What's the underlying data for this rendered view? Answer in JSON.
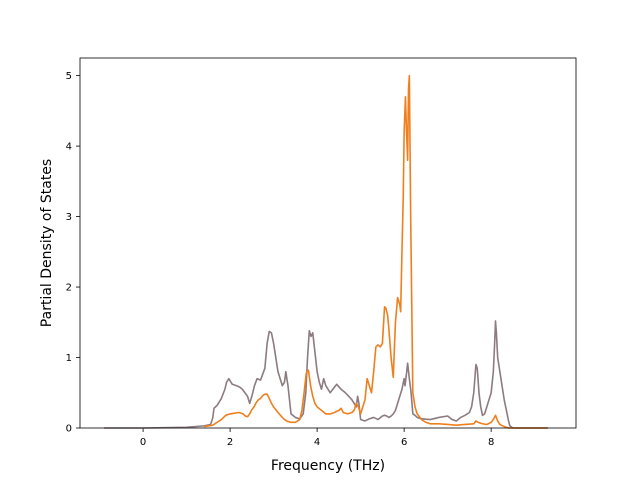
{
  "chart_data": {
    "type": "line",
    "title": "",
    "xlabel": "Frequency (THz)",
    "ylabel": "Partial Density of States",
    "xlim": [
      -1.45,
      9.95
    ],
    "ylim": [
      0,
      5.25
    ],
    "xticks": [
      0,
      2,
      4,
      6,
      8
    ],
    "yticks": [
      0,
      1,
      2,
      3,
      4,
      5
    ],
    "grid": false,
    "legend": "none",
    "series": [
      {
        "color": "#8c7b7f",
        "x": [
          -0.9,
          0.0,
          0.5,
          1.0,
          1.4,
          1.55,
          1.6,
          1.63,
          1.7,
          1.8,
          1.88,
          1.92,
          1.97,
          2.05,
          2.15,
          2.22,
          2.28,
          2.34,
          2.4,
          2.45,
          2.5,
          2.56,
          2.62,
          2.7,
          2.8,
          2.85,
          2.9,
          2.95,
          3.0,
          3.1,
          3.2,
          3.25,
          3.28,
          3.33,
          3.4,
          3.5,
          3.6,
          3.68,
          3.74,
          3.78,
          3.82,
          3.86,
          3.9,
          4.0,
          4.05,
          4.1,
          4.15,
          4.2,
          4.3,
          4.45,
          4.55,
          4.65,
          4.8,
          4.85,
          4.9,
          4.93,
          4.96,
          5.0,
          5.1,
          5.2,
          5.3,
          5.4,
          5.5,
          5.55,
          5.6,
          5.65,
          5.7,
          5.75,
          5.8,
          5.85,
          5.9,
          5.95,
          6.0,
          6.02,
          6.05,
          6.08,
          6.12,
          6.16,
          6.2,
          6.25,
          6.3,
          6.4,
          6.6,
          6.8,
          7.0,
          7.1,
          7.2,
          7.3,
          7.4,
          7.5,
          7.55,
          7.6,
          7.65,
          7.68,
          7.72,
          7.76,
          7.8,
          7.85,
          7.9,
          7.95,
          8.0,
          8.05,
          8.08,
          8.1,
          8.12,
          8.15,
          8.2,
          8.25,
          8.3,
          8.35,
          8.4,
          8.43,
          8.5,
          8.6,
          8.8,
          9.0,
          9.3
        ],
        "y": [
          0.0,
          0.0,
          0.005,
          0.01,
          0.03,
          0.05,
          0.14,
          0.28,
          0.32,
          0.42,
          0.55,
          0.65,
          0.7,
          0.62,
          0.6,
          0.58,
          0.55,
          0.5,
          0.45,
          0.35,
          0.45,
          0.6,
          0.7,
          0.68,
          0.85,
          1.2,
          1.37,
          1.35,
          1.2,
          0.8,
          0.6,
          0.65,
          0.8,
          0.6,
          0.2,
          0.15,
          0.13,
          0.2,
          0.5,
          1.0,
          1.38,
          1.3,
          1.35,
          0.8,
          0.65,
          0.55,
          0.7,
          0.6,
          0.5,
          0.62,
          0.55,
          0.5,
          0.4,
          0.35,
          0.3,
          0.45,
          0.35,
          0.12,
          0.1,
          0.13,
          0.15,
          0.12,
          0.17,
          0.18,
          0.17,
          0.15,
          0.17,
          0.2,
          0.25,
          0.35,
          0.45,
          0.55,
          0.7,
          0.6,
          0.75,
          0.92,
          0.7,
          0.5,
          0.2,
          0.18,
          0.15,
          0.13,
          0.12,
          0.15,
          0.17,
          0.12,
          0.1,
          0.15,
          0.18,
          0.22,
          0.3,
          0.5,
          0.9,
          0.85,
          0.5,
          0.3,
          0.18,
          0.2,
          0.3,
          0.4,
          0.5,
          0.8,
          1.2,
          1.52,
          1.35,
          1.0,
          0.8,
          0.6,
          0.4,
          0.25,
          0.1,
          0.03,
          0.0,
          0.0,
          0.0,
          0.0,
          0.0
        ]
      },
      {
        "color": "#ef7f1e",
        "x": [
          1.4,
          1.6,
          1.7,
          1.8,
          1.9,
          2.0,
          2.1,
          2.2,
          2.3,
          2.35,
          2.4,
          2.45,
          2.5,
          2.55,
          2.6,
          2.65,
          2.7,
          2.75,
          2.8,
          2.85,
          2.9,
          2.95,
          3.0,
          3.1,
          3.2,
          3.25,
          3.3,
          3.4,
          3.5,
          3.6,
          3.65,
          3.7,
          3.75,
          3.8,
          3.85,
          3.9,
          3.95,
          4.0,
          4.1,
          4.2,
          4.3,
          4.4,
          4.5,
          4.55,
          4.6,
          4.7,
          4.8,
          4.85,
          4.9,
          4.95,
          5.0,
          5.1,
          5.15,
          5.2,
          5.25,
          5.3,
          5.35,
          5.4,
          5.45,
          5.5,
          5.55,
          5.58,
          5.62,
          5.65,
          5.7,
          5.75,
          5.8,
          5.85,
          5.9,
          5.92,
          5.95,
          5.98,
          6.0,
          6.03,
          6.05,
          6.08,
          6.1,
          6.12,
          6.15,
          6.18,
          6.2,
          6.25,
          6.3,
          6.4,
          6.5,
          6.6,
          6.8,
          7.0,
          7.2,
          7.4,
          7.6,
          7.65,
          7.7,
          7.8,
          7.9,
          8.0,
          8.05,
          8.1,
          8.15,
          8.2,
          8.3,
          8.4,
          8.5,
          9.3
        ],
        "y": [
          0.02,
          0.04,
          0.08,
          0.12,
          0.18,
          0.2,
          0.21,
          0.22,
          0.2,
          0.17,
          0.16,
          0.2,
          0.26,
          0.3,
          0.36,
          0.4,
          0.42,
          0.46,
          0.48,
          0.48,
          0.42,
          0.35,
          0.3,
          0.22,
          0.15,
          0.12,
          0.1,
          0.08,
          0.08,
          0.12,
          0.25,
          0.5,
          0.78,
          0.82,
          0.6,
          0.45,
          0.35,
          0.3,
          0.25,
          0.2,
          0.2,
          0.22,
          0.25,
          0.28,
          0.22,
          0.2,
          0.22,
          0.25,
          0.35,
          0.3,
          0.2,
          0.4,
          0.7,
          0.6,
          0.5,
          0.8,
          1.15,
          1.18,
          1.15,
          1.2,
          1.72,
          1.7,
          1.6,
          1.4,
          1.0,
          0.72,
          1.5,
          1.85,
          1.75,
          1.65,
          2.5,
          3.3,
          4.2,
          4.7,
          4.3,
          3.8,
          4.8,
          5.0,
          3.0,
          1.5,
          0.5,
          0.3,
          0.2,
          0.12,
          0.08,
          0.06,
          0.06,
          0.05,
          0.04,
          0.05,
          0.06,
          0.1,
          0.08,
          0.06,
          0.05,
          0.08,
          0.12,
          0.18,
          0.1,
          0.05,
          0.02,
          0.0,
          0.0,
          0.0
        ]
      }
    ]
  }
}
